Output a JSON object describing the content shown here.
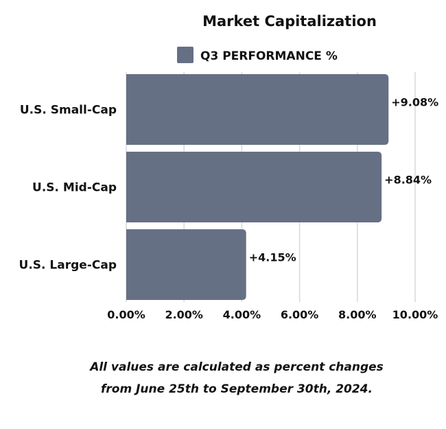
{
  "chart_data": {
    "type": "bar",
    "orientation": "horizontal",
    "title": "Market Capitalization",
    "categories": [
      "U.S. Small-Cap",
      "U.S. Mid-Cap",
      "U.S. Large-Cap"
    ],
    "series": [
      {
        "name": "Q3 PERFORMANCE %",
        "values": [
          9.08,
          8.84,
          4.15
        ],
        "color": "#667085"
      }
    ],
    "data_labels": [
      "+9.08%",
      "+8.84%",
      "+4.15%"
    ],
    "xticks": [
      0,
      2,
      4,
      6,
      8,
      10
    ],
    "xtick_labels": [
      "0.00%",
      "2.00%",
      "4.00%",
      "6.00%",
      "8.00%",
      "10.00%"
    ],
    "xlim": [
      0,
      10
    ],
    "grid": true,
    "legend_position": "top"
  },
  "footnote": {
    "line1": "All values are calculated as percent changes",
    "line2": "from June 25th to September 30th, 2024."
  }
}
